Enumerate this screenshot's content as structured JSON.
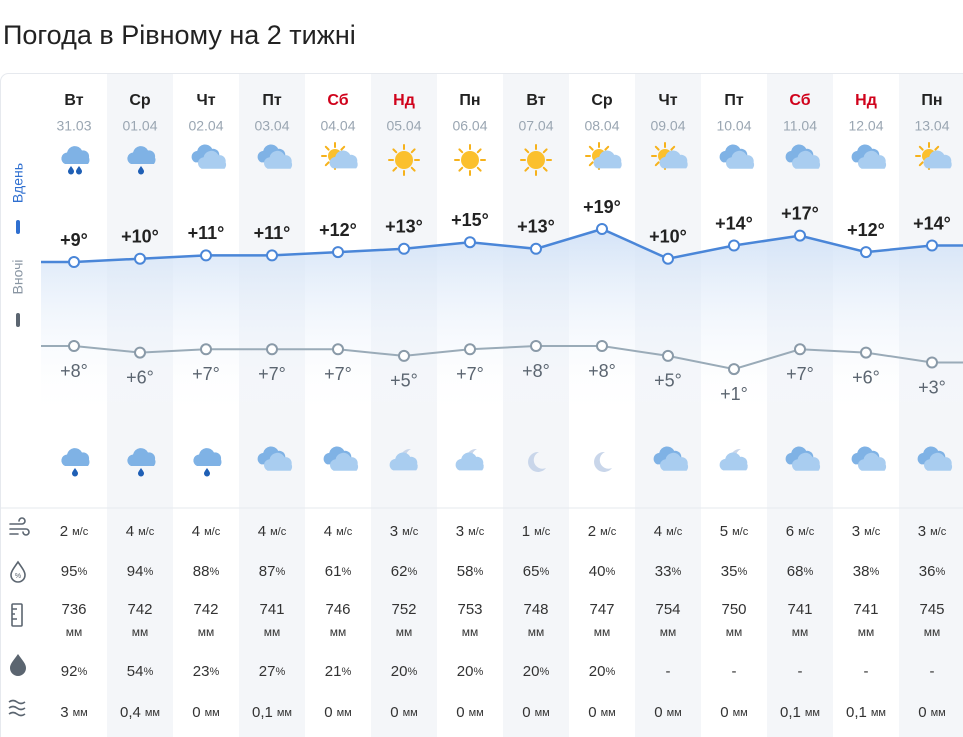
{
  "title": "Погода в Рівному на 2 тижні",
  "day_label": "Вдень",
  "night_label": "Вночі",
  "units": {
    "wind": "м/с",
    "humidity": "%",
    "pressure": "мм",
    "probability": "%",
    "precipitation": "мм"
  },
  "days": [
    {
      "name": "Вт",
      "date": "31.03",
      "color": "#222222",
      "day_icon": "rain",
      "night_icon": "light-rain",
      "day_temp": 9,
      "day_temp_label": "+9°",
      "night_temp": 8,
      "night_temp_label": "+8°",
      "wind": 2,
      "humidity": 95,
      "pressure": 736,
      "probability": 92,
      "precipitation": "3"
    },
    {
      "name": "Ср",
      "date": "01.04",
      "color": "#222222",
      "day_icon": "light-rain",
      "night_icon": "light-rain",
      "day_temp": 10,
      "day_temp_label": "+10°",
      "night_temp": 6,
      "night_temp_label": "+6°",
      "wind": 4,
      "humidity": 94,
      "pressure": 742,
      "probability": 54,
      "precipitation": "0,4"
    },
    {
      "name": "Чт",
      "date": "02.04",
      "color": "#222222",
      "day_icon": "cloudy",
      "night_icon": "light-rain",
      "day_temp": 11,
      "day_temp_label": "+11°",
      "night_temp": 7,
      "night_temp_label": "+7°",
      "wind": 4,
      "humidity": 88,
      "pressure": 742,
      "probability": 23,
      "precipitation": "0"
    },
    {
      "name": "Пт",
      "date": "03.04",
      "color": "#222222",
      "day_icon": "cloudy",
      "night_icon": "cloudy",
      "day_temp": 11,
      "day_temp_label": "+11°",
      "night_temp": 7,
      "night_temp_label": "+7°",
      "wind": 4,
      "humidity": 87,
      "pressure": 741,
      "probability": 27,
      "precipitation": "0,1"
    },
    {
      "name": "Сб",
      "date": "04.04",
      "color": "#d0021b",
      "day_icon": "partly-sunny",
      "night_icon": "cloudy",
      "day_temp": 12,
      "day_temp_label": "+12°",
      "night_temp": 7,
      "night_temp_label": "+7°",
      "wind": 4,
      "humidity": 61,
      "pressure": 746,
      "probability": 21,
      "precipitation": "0"
    },
    {
      "name": "Нд",
      "date": "05.04",
      "color": "#d0021b",
      "day_icon": "sunny",
      "night_icon": "moon-cloud",
      "day_temp": 13,
      "day_temp_label": "+13°",
      "night_temp": 5,
      "night_temp_label": "+5°",
      "wind": 3,
      "humidity": 62,
      "pressure": 752,
      "probability": 20,
      "precipitation": "0"
    },
    {
      "name": "Пн",
      "date": "06.04",
      "color": "#222222",
      "day_icon": "sunny",
      "night_icon": "moon-cloud",
      "day_temp": 15,
      "day_temp_label": "+15°",
      "night_temp": 7,
      "night_temp_label": "+7°",
      "wind": 3,
      "humidity": 58,
      "pressure": 753,
      "probability": 20,
      "precipitation": "0"
    },
    {
      "name": "Вт",
      "date": "07.04",
      "color": "#222222",
      "day_icon": "sunny",
      "night_icon": "moon",
      "day_temp": 13,
      "day_temp_label": "+13°",
      "night_temp": 8,
      "night_temp_label": "+8°",
      "wind": 1,
      "humidity": 65,
      "pressure": 748,
      "probability": 20,
      "precipitation": "0"
    },
    {
      "name": "Ср",
      "date": "08.04",
      "color": "#222222",
      "day_icon": "partly-sunny",
      "night_icon": "moon",
      "day_temp": 19,
      "day_temp_label": "+19°",
      "night_temp": 8,
      "night_temp_label": "+8°",
      "wind": 2,
      "humidity": 40,
      "pressure": 747,
      "probability": 20,
      "precipitation": "0"
    },
    {
      "name": "Чт",
      "date": "09.04",
      "color": "#222222",
      "day_icon": "partly-sunny",
      "night_icon": "cloudy",
      "day_temp": 10,
      "day_temp_label": "+10°",
      "night_temp": 5,
      "night_temp_label": "+5°",
      "wind": 4,
      "humidity": 33,
      "pressure": 754,
      "probability": "-",
      "precipitation": "0"
    },
    {
      "name": "Пт",
      "date": "10.04",
      "color": "#222222",
      "day_icon": "cloudy",
      "night_icon": "moon-cloud",
      "day_temp": 14,
      "day_temp_label": "+14°",
      "night_temp": 1,
      "night_temp_label": "+1°",
      "wind": 5,
      "humidity": 35,
      "pressure": 750,
      "probability": "-",
      "precipitation": "0"
    },
    {
      "name": "Сб",
      "date": "11.04",
      "color": "#d0021b",
      "day_icon": "cloudy",
      "night_icon": "cloudy",
      "day_temp": 17,
      "day_temp_label": "+17°",
      "night_temp": 7,
      "night_temp_label": "+7°",
      "wind": 6,
      "humidity": 68,
      "pressure": 741,
      "probability": "-",
      "precipitation": "0,1"
    },
    {
      "name": "Нд",
      "date": "12.04",
      "color": "#d0021b",
      "day_icon": "cloudy",
      "night_icon": "cloudy",
      "day_temp": 12,
      "day_temp_label": "+12°",
      "night_temp": 6,
      "night_temp_label": "+6°",
      "wind": 3,
      "humidity": 38,
      "pressure": 741,
      "probability": "-",
      "precipitation": "0,1"
    },
    {
      "name": "Пн",
      "date": "13.04",
      "color": "#222222",
      "day_icon": "partly-sunny",
      "night_icon": "cloudy",
      "day_temp": 14,
      "day_temp_label": "+14°",
      "night_temp": 3,
      "night_temp_label": "+3°",
      "wind": 3,
      "humidity": 36,
      "pressure": 745,
      "probability": "-",
      "precipitation": "0"
    }
  ]
}
